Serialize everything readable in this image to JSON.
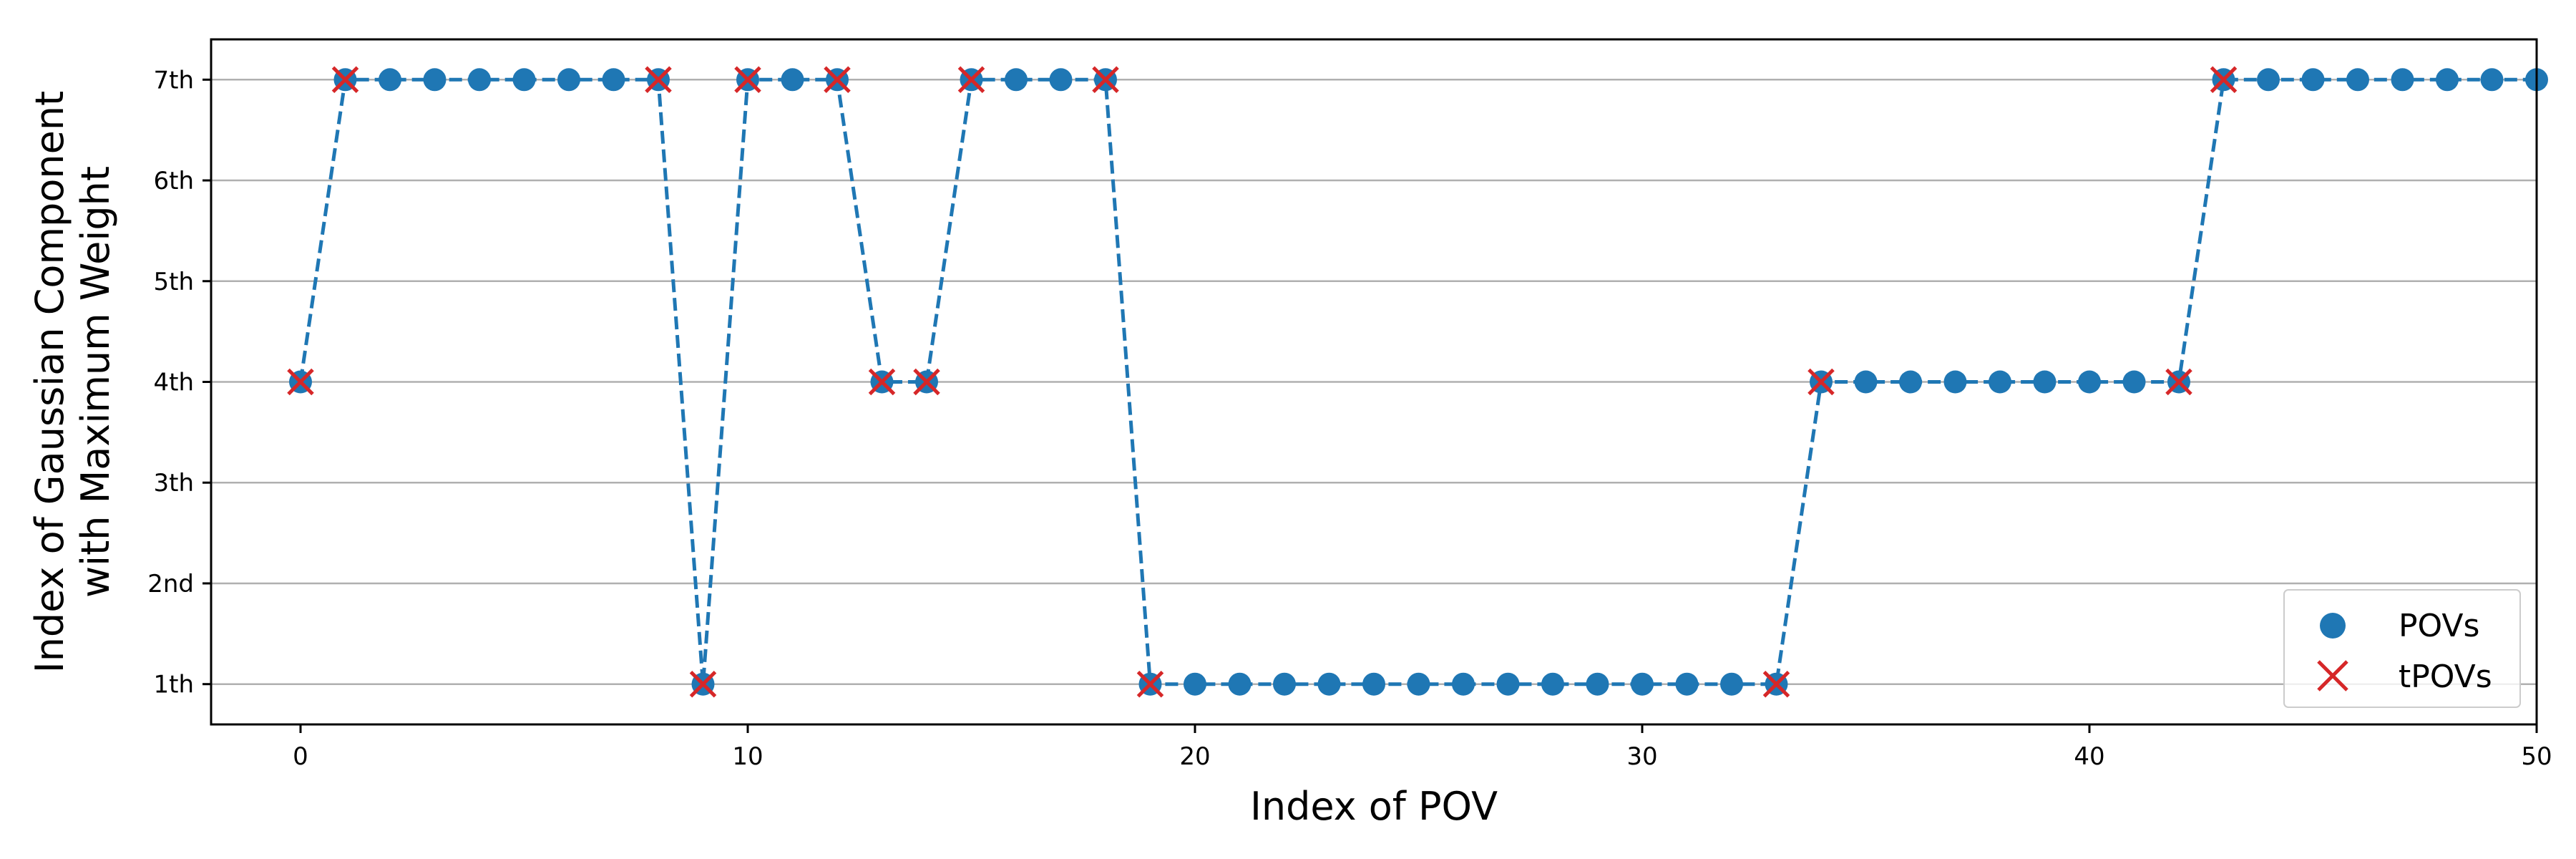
{
  "chart_data": {
    "type": "scatter",
    "xlabel": "Index of POV",
    "ylabel_lines": [
      "Index of Gaussian Component",
      "with Maximum Weight"
    ],
    "xlim": [
      -2,
      50
    ],
    "ylim": [
      0.6,
      7.4
    ],
    "x_ticks": [
      0,
      10,
      20,
      30,
      40,
      50
    ],
    "y_ticks": [
      1,
      2,
      3,
      4,
      5,
      6,
      7
    ],
    "y_tick_labels": [
      "1th",
      "2nd",
      "3th",
      "4th",
      "5th",
      "6th",
      "7th"
    ],
    "grid": "horizontal",
    "legend_position": "lower-right",
    "series": [
      {
        "name": "POVs",
        "marker": "circle",
        "color": "#1f77b4",
        "line_style": "dashed",
        "x": [
          0,
          1,
          2,
          3,
          4,
          5,
          6,
          7,
          8,
          9,
          10,
          11,
          12,
          13,
          14,
          15,
          16,
          17,
          18,
          19,
          20,
          21,
          22,
          23,
          24,
          25,
          26,
          27,
          28,
          29,
          30,
          31,
          32,
          33,
          34,
          35,
          36,
          37,
          38,
          39,
          40,
          41,
          42,
          43,
          44,
          45,
          46,
          47,
          48,
          49,
          50
        ],
        "y": [
          4,
          7,
          7,
          7,
          7,
          7,
          7,
          7,
          7,
          1,
          7,
          7,
          7,
          4,
          4,
          7,
          7,
          7,
          7,
          1,
          1,
          1,
          1,
          1,
          1,
          1,
          1,
          1,
          1,
          1,
          1,
          1,
          1,
          1,
          4,
          4,
          4,
          4,
          4,
          4,
          4,
          4,
          4,
          7,
          7,
          7,
          7,
          7,
          7,
          7,
          7
        ]
      },
      {
        "name": "tPOVs",
        "marker": "x",
        "color": "#d62728",
        "x": [
          0,
          1,
          8,
          9,
          10,
          12,
          13,
          14,
          15,
          18,
          19,
          33,
          34,
          42,
          43
        ],
        "y": [
          4,
          7,
          7,
          1,
          7,
          7,
          4,
          4,
          7,
          7,
          1,
          1,
          4,
          4,
          7
        ]
      }
    ]
  }
}
